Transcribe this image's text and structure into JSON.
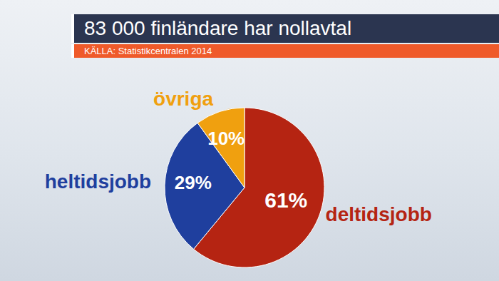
{
  "chart_data": {
    "type": "pie",
    "title": "83 000 finländare har nollavtal",
    "subtitle": "KÄLLA: Statistikcentralen 2014",
    "categories": [
      "deltidsjobb",
      "heltidsjobb",
      "övriga"
    ],
    "values": [
      61,
      29,
      10
    ],
    "value_labels": [
      "61%",
      "29%",
      "10%"
    ],
    "colors": [
      "#b52412",
      "#1f3f9e",
      "#f0a00f"
    ],
    "data_labels": true
  }
}
